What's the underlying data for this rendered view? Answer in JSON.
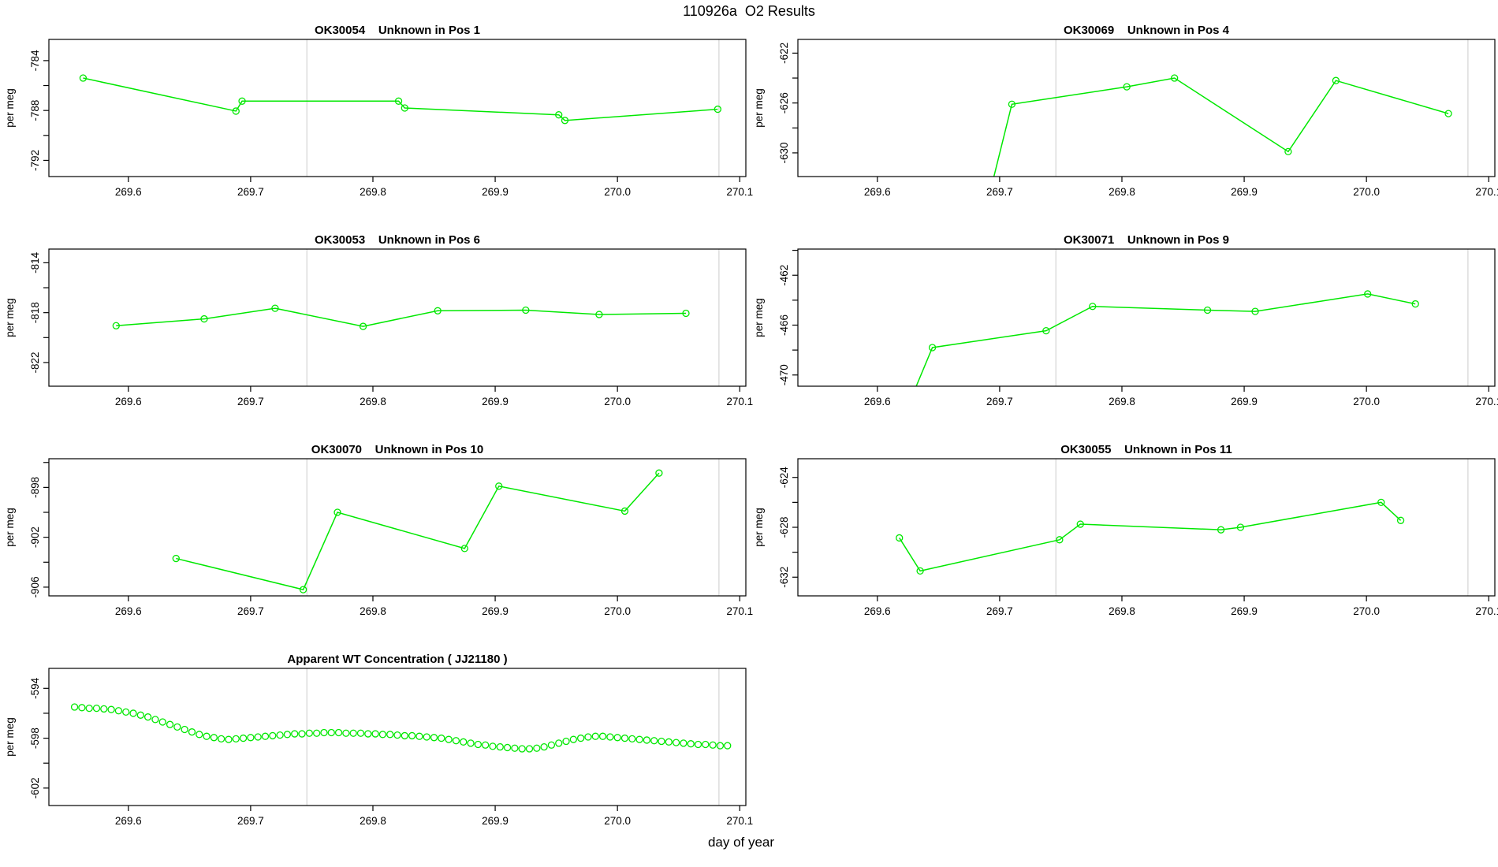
{
  "page_title": "110926a  O2 Results",
  "xlabel": "day of year",
  "colors": {
    "series_green": "#00e800",
    "vline_gray": "#d4d4d4",
    "axis_black": "#000000",
    "background": "#ffffff"
  },
  "x_axis": {
    "xlim": [
      269.535,
      270.105
    ],
    "ticks": [
      269.6,
      269.7,
      269.8,
      269.9,
      270.0,
      270.1
    ],
    "vlines": [
      269.746,
      270.083
    ]
  },
  "chart_data": [
    {
      "type": "line",
      "title": "OK30054    Unknown in Pos 1",
      "ylabel": "per meg",
      "ylim": [
        -782.3,
        -793.3
      ],
      "y_label_ticks": [
        -784,
        -788,
        -792
      ],
      "y_tick_step": 2,
      "x": [
        269.563,
        269.688,
        269.693,
        269.821,
        269.826,
        269.952,
        269.957,
        270.082
      ],
      "y": [
        -785.4,
        -788.05,
        -787.25,
        -787.25,
        -787.8,
        -788.35,
        -788.8,
        -787.9
      ]
    },
    {
      "type": "line",
      "title": "OK30069    Unknown in Pos 4",
      "ylabel": "per meg",
      "ylim": [
        -620.9,
        -631.9
      ],
      "y_label_ticks": [
        -622,
        -626,
        -630
      ],
      "y_tick_step": 2,
      "x": [
        269.69,
        269.71,
        269.804,
        269.843,
        269.936,
        269.975,
        270.067
      ],
      "y": [
        -634.0,
        -626.1,
        -624.7,
        -624.0,
        -629.9,
        -624.2,
        -626.85
      ]
    },
    {
      "type": "line",
      "title": "OK30053    Unknown in Pos 6",
      "ylabel": "per meg",
      "ylim": [
        -812.9,
        -823.9
      ],
      "y_label_ticks": [
        -814,
        -818,
        -822
      ],
      "y_tick_step": 2,
      "x": [
        269.59,
        269.662,
        269.72,
        269.792,
        269.853,
        269.925,
        269.985,
        270.056
      ],
      "y": [
        -819.05,
        -818.5,
        -817.65,
        -819.1,
        -817.85,
        -817.8,
        -818.15,
        -818.05
      ]
    },
    {
      "type": "line",
      "title": "OK30071    Unknown in Pos 9",
      "ylabel": "per meg",
      "ylim": [
        -459.9,
        -470.9
      ],
      "y_label_ticks": [
        -462,
        -466,
        -470
      ],
      "y_tick_step": 2,
      "x": [
        269.625,
        269.645,
        269.738,
        269.776,
        269.87,
        269.909,
        270.001,
        270.04
      ],
      "y": [
        -472.5,
        -467.8,
        -466.45,
        -464.5,
        -464.8,
        -464.9,
        -463.5,
        -464.3
      ]
    },
    {
      "type": "line",
      "title": "OK30070    Unknown in Pos 10",
      "ylabel": "per meg",
      "ylim": [
        -895.7,
        -906.7
      ],
      "y_label_ticks": [
        -898,
        -902,
        -906
      ],
      "y_tick_step": 2,
      "x": [
        269.639,
        269.743,
        269.771,
        269.875,
        269.903,
        270.006,
        270.034
      ],
      "y": [
        -903.7,
        -906.2,
        -900.0,
        -902.9,
        -897.9,
        -899.9,
        -896.85
      ]
    },
    {
      "type": "line",
      "title": "OK30055    Unknown in Pos 11",
      "ylabel": "per meg",
      "ylim": [
        -622.5,
        -633.5
      ],
      "y_label_ticks": [
        -624,
        -628,
        -632
      ],
      "y_tick_step": 2,
      "x": [
        269.618,
        269.635,
        269.749,
        269.766,
        269.881,
        269.897,
        270.012,
        270.028
      ],
      "y": [
        -628.85,
        -631.5,
        -629.0,
        -627.75,
        -628.2,
        -628.0,
        -626.0,
        -627.45
      ]
    },
    {
      "type": "scatter",
      "title": "Apparent WT Concentration ( JJ21180 )",
      "ylabel": "per meg",
      "xlabel": "day of year",
      "ylim": [
        -592.4,
        -603.4
      ],
      "y_label_ticks": [
        -594,
        -598,
        -602
      ],
      "y_tick_step": 2,
      "x": [
        269.556,
        269.562,
        269.568,
        269.574,
        269.58,
        269.586,
        269.592,
        269.598,
        269.604,
        269.61,
        269.616,
        269.622,
        269.628,
        269.634,
        269.64,
        269.646,
        269.652,
        269.658,
        269.664,
        269.67,
        269.676,
        269.682,
        269.688,
        269.694,
        269.7,
        269.706,
        269.712,
        269.718,
        269.724,
        269.73,
        269.736,
        269.742,
        269.748,
        269.754,
        269.76,
        269.766,
        269.772,
        269.778,
        269.784,
        269.79,
        269.796,
        269.802,
        269.808,
        269.814,
        269.82,
        269.826,
        269.832,
        269.838,
        269.844,
        269.85,
        269.856,
        269.862,
        269.868,
        269.874,
        269.88,
        269.886,
        269.892,
        269.898,
        269.904,
        269.91,
        269.916,
        269.922,
        269.928,
        269.934,
        269.94,
        269.946,
        269.952,
        269.958,
        269.964,
        269.97,
        269.976,
        269.982,
        269.988,
        269.994,
        270.0,
        270.006,
        270.012,
        270.018,
        270.024,
        270.03,
        270.036,
        270.042,
        270.048,
        270.054,
        270.06,
        270.066,
        270.072,
        270.078,
        270.084,
        270.09
      ],
      "y": [
        -595.5,
        -595.55,
        -595.6,
        -595.6,
        -595.65,
        -595.7,
        -595.8,
        -595.9,
        -596.0,
        -596.15,
        -596.3,
        -596.5,
        -596.7,
        -596.9,
        -597.1,
        -597.3,
        -597.5,
        -597.7,
        -597.85,
        -597.95,
        -598.05,
        -598.1,
        -598.05,
        -598.0,
        -597.95,
        -597.9,
        -597.85,
        -597.8,
        -597.75,
        -597.7,
        -597.65,
        -597.65,
        -597.6,
        -597.6,
        -597.55,
        -597.55,
        -597.55,
        -597.6,
        -597.6,
        -597.6,
        -597.65,
        -597.65,
        -597.7,
        -597.7,
        -597.75,
        -597.8,
        -597.8,
        -597.85,
        -597.9,
        -597.95,
        -598.0,
        -598.1,
        -598.2,
        -598.3,
        -598.4,
        -598.5,
        -598.55,
        -598.65,
        -598.7,
        -598.75,
        -598.8,
        -598.85,
        -598.85,
        -598.8,
        -598.7,
        -598.55,
        -598.4,
        -598.25,
        -598.1,
        -598.0,
        -597.9,
        -597.85,
        -597.85,
        -597.9,
        -597.95,
        -598.0,
        -598.05,
        -598.1,
        -598.15,
        -598.2,
        -598.25,
        -598.3,
        -598.35,
        -598.4,
        -598.45,
        -598.5,
        -598.5,
        -598.55,
        -598.6,
        -598.6
      ]
    }
  ]
}
